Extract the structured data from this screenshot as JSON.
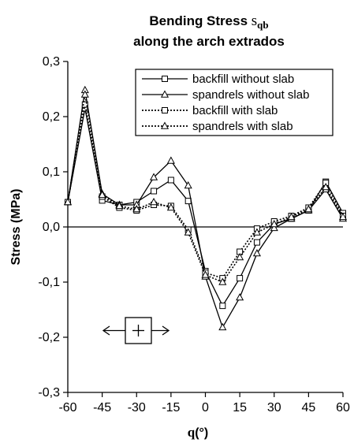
{
  "chart_data": {
    "type": "line",
    "title_line1_prefix": "Bending Stress ",
    "title_symbol": "s",
    "title_subscript": "qb",
    "title_line2": "along the arch extrados",
    "xlabel_symbol": "q",
    "xlabel_unit": "(°)",
    "ylabel": "Stress (MPa)",
    "xlim": [
      -60,
      60
    ],
    "ylim": [
      -0.3,
      0.3
    ],
    "xticks": [
      -60,
      -45,
      -30,
      -15,
      0,
      15,
      30,
      45,
      60
    ],
    "xtick_labels": [
      "-60",
      "-45",
      "-30",
      "-15",
      "0",
      "15",
      "30",
      "45",
      "60"
    ],
    "yticks": [
      -0.3,
      -0.2,
      -0.1,
      0.0,
      0.1,
      0.2,
      0.3
    ],
    "ytick_labels": [
      "-0,3",
      "-0,2",
      "-0,1",
      "0,0",
      "0,1",
      "0,2",
      "0,3"
    ],
    "grid": false,
    "legend_position": "top-right",
    "x": [
      -60,
      -52.5,
      -45,
      -37.5,
      -30,
      -22.5,
      -15,
      -7.5,
      0,
      7.5,
      15,
      22.5,
      30,
      37.5,
      45,
      52.5,
      60
    ],
    "series": [
      {
        "name": "backfill without slab",
        "marker": "square",
        "dash": "solid",
        "values": [
          0.045,
          0.215,
          0.048,
          0.04,
          0.045,
          0.065,
          0.085,
          0.047,
          -0.08,
          -0.143,
          -0.093,
          -0.028,
          0.005,
          0.015,
          0.03,
          0.082,
          0.025
        ]
      },
      {
        "name": "spandrels without slab",
        "marker": "triangle",
        "dash": "solid",
        "values": [
          0.045,
          0.248,
          0.06,
          0.04,
          0.04,
          0.09,
          0.12,
          0.075,
          -0.09,
          -0.182,
          -0.128,
          -0.048,
          -0.002,
          0.015,
          0.03,
          0.068,
          0.015
        ]
      },
      {
        "name": "backfill with slab",
        "marker": "square",
        "dash": "dotted",
        "values": [
          0.045,
          0.222,
          0.055,
          0.035,
          0.03,
          0.04,
          0.038,
          -0.005,
          -0.083,
          -0.093,
          -0.045,
          -0.003,
          0.01,
          0.02,
          0.035,
          0.08,
          0.02
        ]
      },
      {
        "name": "spandrels with slab",
        "marker": "triangle",
        "dash": "dotted",
        "values": [
          0.045,
          0.24,
          0.058,
          0.038,
          0.032,
          0.045,
          0.035,
          -0.01,
          -0.087,
          -0.1,
          -0.055,
          -0.01,
          0.005,
          0.018,
          0.032,
          0.072,
          0.018
        ]
      }
    ]
  }
}
